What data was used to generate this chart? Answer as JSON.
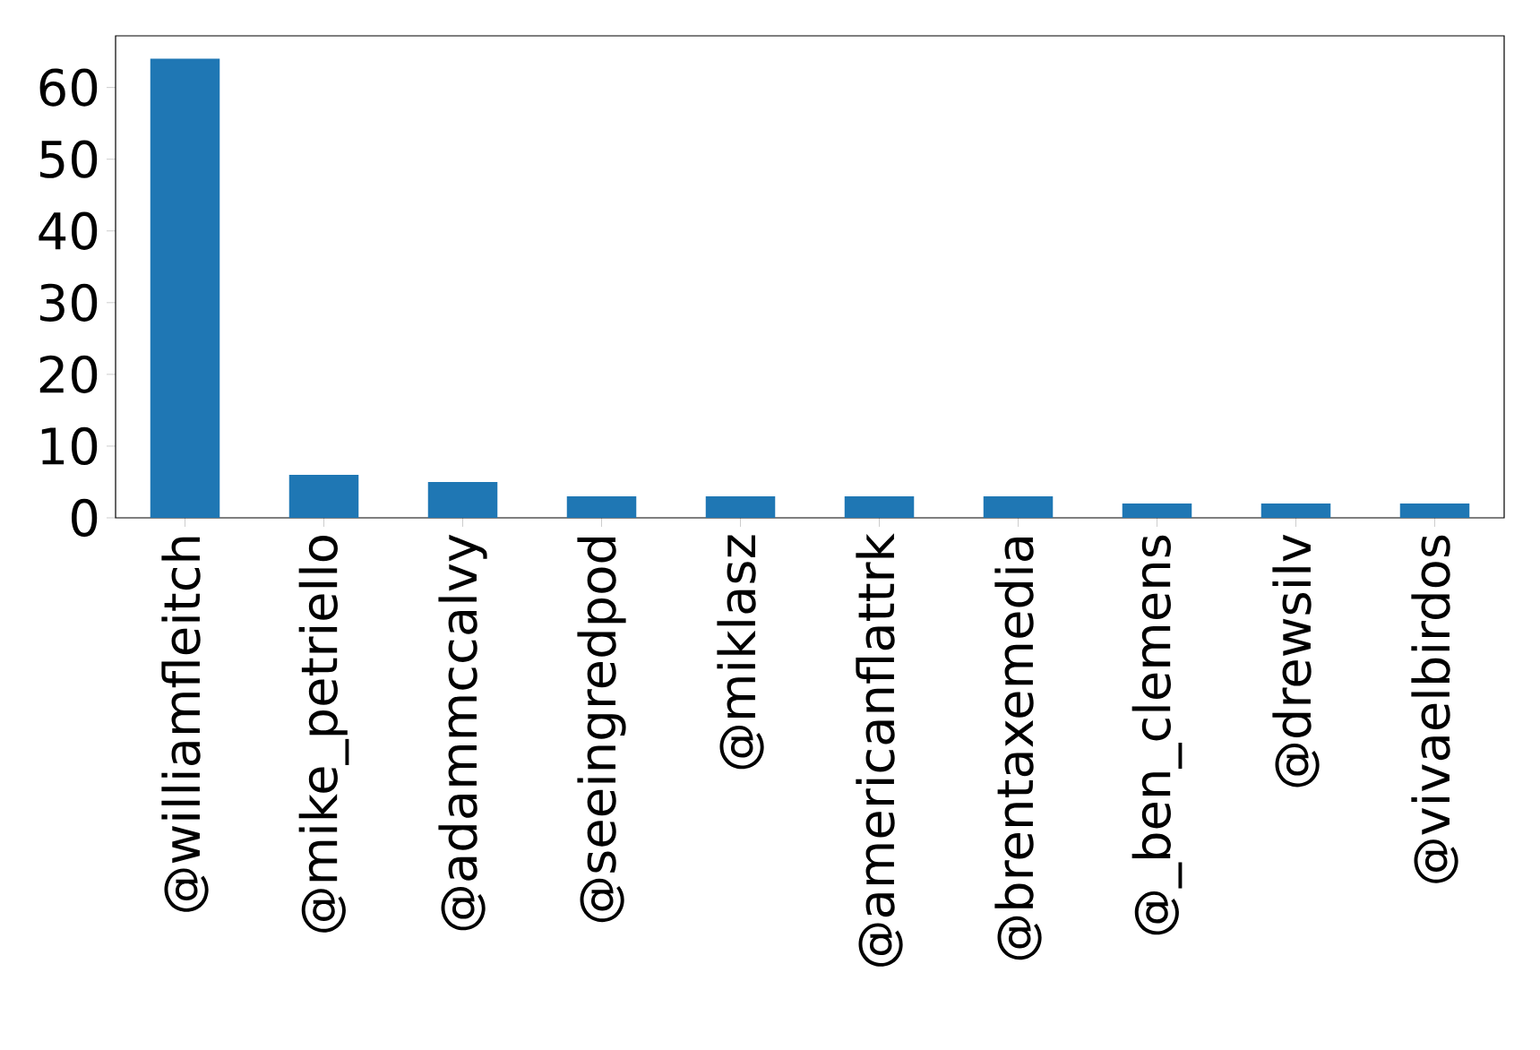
{
  "chart_data": {
    "type": "bar",
    "categories": [
      "@williamfleitch",
      "@mike_petriello",
      "@adammccalvy",
      "@seeingredpod",
      "@miklasz",
      "@americanflattrk",
      "@brentaxemedia",
      "@_ben_clemens",
      "@drewsilv",
      "@vivaelbirdos"
    ],
    "values": [
      64,
      6,
      5,
      3,
      3,
      3,
      3,
      2,
      2,
      2
    ],
    "color": "#1f77b4",
    "ylim": [
      0,
      67.2
    ],
    "yticks": [
      0,
      10,
      20,
      30,
      40,
      50,
      60
    ]
  }
}
